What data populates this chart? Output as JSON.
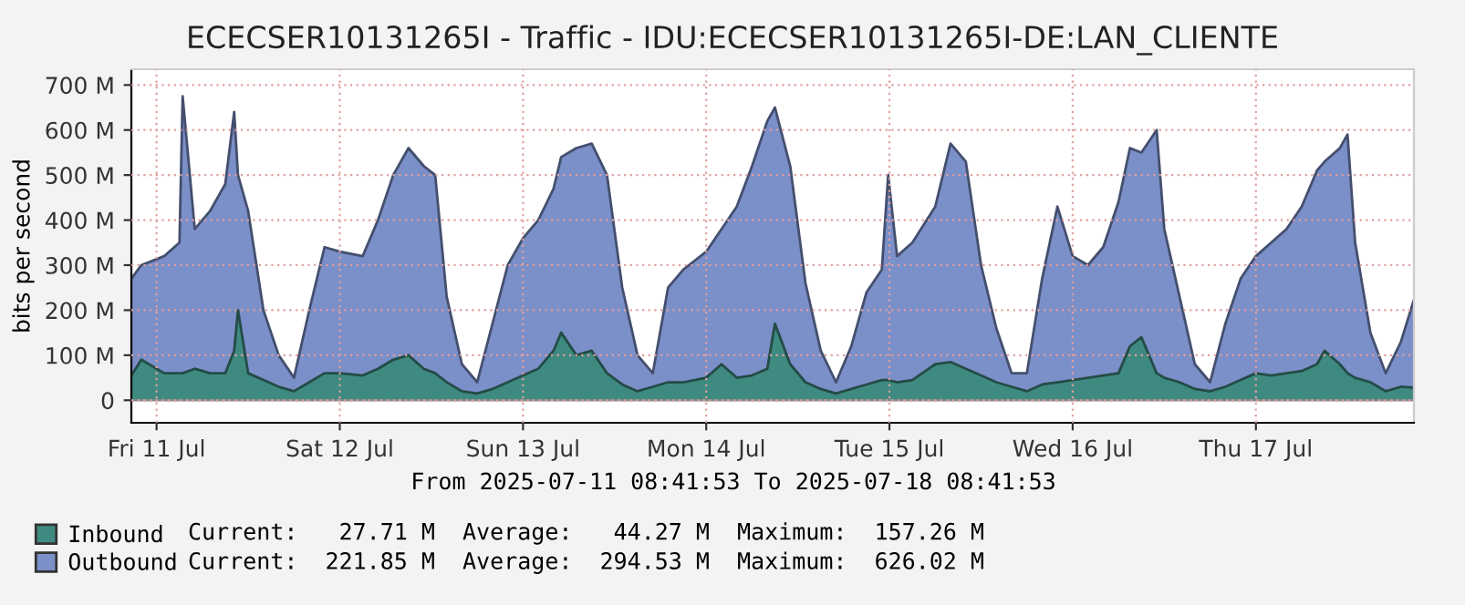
{
  "chart_data": {
    "type": "area",
    "title": "ECECSER10131265I - Traffic - IDU:ECECSER10131265I-DE:LAN_CLIENTE",
    "xlabel": "From 2025-07-11 08:41:53 To 2025-07-18 08:41:53",
    "ylabel": "bits per second",
    "x": [
      "2025-07-11T08:42",
      "2025-07-11T10:00",
      "2025-07-11T13:00",
      "2025-07-11T15:00",
      "2025-07-11T15:25",
      "2025-07-11T17:00",
      "2025-07-11T19:00",
      "2025-07-11T21:00",
      "2025-07-11T22:10",
      "2025-07-11T22:40",
      "2025-07-12T00:00",
      "2025-07-12T02:00",
      "2025-07-12T04:00",
      "2025-07-12T06:00",
      "2025-07-12T08:00",
      "2025-07-12T10:00",
      "2025-07-12T12:00",
      "2025-07-12T15:00",
      "2025-07-12T17:00",
      "2025-07-12T19:00",
      "2025-07-12T21:00",
      "2025-07-12T23:00",
      "2025-07-13T00:30",
      "2025-07-13T02:00",
      "2025-07-13T04:00",
      "2025-07-13T06:00",
      "2025-07-13T08:00",
      "2025-07-13T10:00",
      "2025-07-13T12:00",
      "2025-07-13T14:00",
      "2025-07-13T16:00",
      "2025-07-13T17:00",
      "2025-07-13T19:00",
      "2025-07-13T21:00",
      "2025-07-13T23:00",
      "2025-07-14T01:00",
      "2025-07-14T03:00",
      "2025-07-14T05:00",
      "2025-07-14T07:00",
      "2025-07-14T09:00",
      "2025-07-14T12:00",
      "2025-07-14T14:00",
      "2025-07-14T16:00",
      "2025-07-14T18:00",
      "2025-07-14T20:00",
      "2025-07-14T21:00",
      "2025-07-14T23:00",
      "2025-07-15T01:00",
      "2025-07-15T03:00",
      "2025-07-15T05:00",
      "2025-07-15T07:00",
      "2025-07-15T09:00",
      "2025-07-15T11:00",
      "2025-07-15T11:50",
      "2025-07-15T13:00",
      "2025-07-15T15:00",
      "2025-07-15T18:00",
      "2025-07-15T20:00",
      "2025-07-15T22:00",
      "2025-07-16T00:00",
      "2025-07-16T02:00",
      "2025-07-16T04:00",
      "2025-07-16T06:00",
      "2025-07-16T08:00",
      "2025-07-16T10:00",
      "2025-07-16T12:00",
      "2025-07-16T14:00",
      "2025-07-16T16:00",
      "2025-07-16T18:00",
      "2025-07-16T19:30",
      "2025-07-16T21:00",
      "2025-07-16T23:00",
      "2025-07-17T00:00",
      "2025-07-17T02:00",
      "2025-07-17T04:00",
      "2025-07-17T06:00",
      "2025-07-17T08:00",
      "2025-07-17T10:00",
      "2025-07-17T12:00",
      "2025-07-17T14:00",
      "2025-07-17T16:00",
      "2025-07-17T18:00",
      "2025-07-17T20:00",
      "2025-07-17T21:00",
      "2025-07-17T23:00",
      "2025-07-18T00:00",
      "2025-07-18T01:00",
      "2025-07-18T03:00",
      "2025-07-18T05:00",
      "2025-07-18T07:00",
      "2025-07-18T08:41"
    ],
    "series": [
      {
        "name": "Outbound",
        "color": "#7b8fc8",
        "values": [
          270,
          300,
          320,
          350,
          675,
          380,
          420,
          480,
          640,
          500,
          420,
          200,
          100,
          50,
          200,
          340,
          330,
          320,
          400,
          500,
          560,
          520,
          500,
          230,
          80,
          40,
          170,
          300,
          360,
          400,
          470,
          540,
          560,
          570,
          500,
          250,
          100,
          60,
          250,
          290,
          330,
          380,
          430,
          520,
          620,
          650,
          520,
          260,
          110,
          40,
          120,
          240,
          290,
          500,
          320,
          350,
          430,
          570,
          530,
          300,
          160,
          60,
          60,
          270,
          430,
          320,
          300,
          340,
          440,
          560,
          550,
          600,
          380,
          230,
          80,
          40,
          170,
          270,
          320,
          350,
          380,
          430,
          510,
          530,
          560,
          590,
          350,
          150,
          60,
          130,
          222
        ]
      },
      {
        "name": "Inbound",
        "color": "#3f8a80",
        "values": [
          55,
          90,
          60,
          60,
          60,
          70,
          60,
          60,
          110,
          200,
          60,
          45,
          30,
          20,
          40,
          60,
          60,
          55,
          70,
          90,
          100,
          70,
          60,
          40,
          20,
          15,
          25,
          40,
          55,
          70,
          110,
          150,
          100,
          110,
          60,
          35,
          20,
          30,
          40,
          40,
          50,
          80,
          50,
          55,
          70,
          170,
          80,
          40,
          25,
          15,
          25,
          35,
          45,
          45,
          40,
          45,
          80,
          85,
          70,
          55,
          40,
          30,
          20,
          35,
          40,
          45,
          50,
          55,
          60,
          120,
          140,
          60,
          50,
          40,
          25,
          20,
          30,
          45,
          60,
          55,
          60,
          65,
          80,
          110,
          80,
          60,
          50,
          40,
          20,
          30,
          28
        ]
      }
    ],
    "xlim": [
      "2025-07-11T08:41:53",
      "2025-07-18T08:41:53"
    ],
    "xticks": [
      {
        "value": "2025-07-11T12:00",
        "label": "Fri 11 Jul"
      },
      {
        "value": "2025-07-12T12:00",
        "label": "Sat 12 Jul"
      },
      {
        "value": "2025-07-13T12:00",
        "label": "Sun 13 Jul"
      },
      {
        "value": "2025-07-14T12:00",
        "label": "Mon 14 Jul"
      },
      {
        "value": "2025-07-15T12:00",
        "label": "Tue 15 Jul"
      },
      {
        "value": "2025-07-16T12:00",
        "label": "Wed 16 Jul"
      },
      {
        "value": "2025-07-17T12:00",
        "label": "Thu 17 Jul"
      }
    ],
    "ylim": [
      -50,
      735
    ],
    "yticks": [
      0,
      {
        "value": 100,
        "label": "100 M"
      },
      {
        "value": 200,
        "label": "200 M"
      },
      {
        "value": 300,
        "label": "300 M"
      },
      {
        "value": 400,
        "label": "400 M"
      },
      {
        "value": 500,
        "label": "500 M"
      },
      {
        "value": 600,
        "label": "600 M"
      },
      {
        "value": 700,
        "label": "700 M"
      }
    ],
    "grid": true,
    "legend": "bottom left",
    "annotations": [
      "Current:   27.71 M  Average:   44.27 M  Maximum:  157.26 M",
      "Current:  221.85 M  Average:  294.53 M  Maximum:  626.02 M"
    ]
  }
}
